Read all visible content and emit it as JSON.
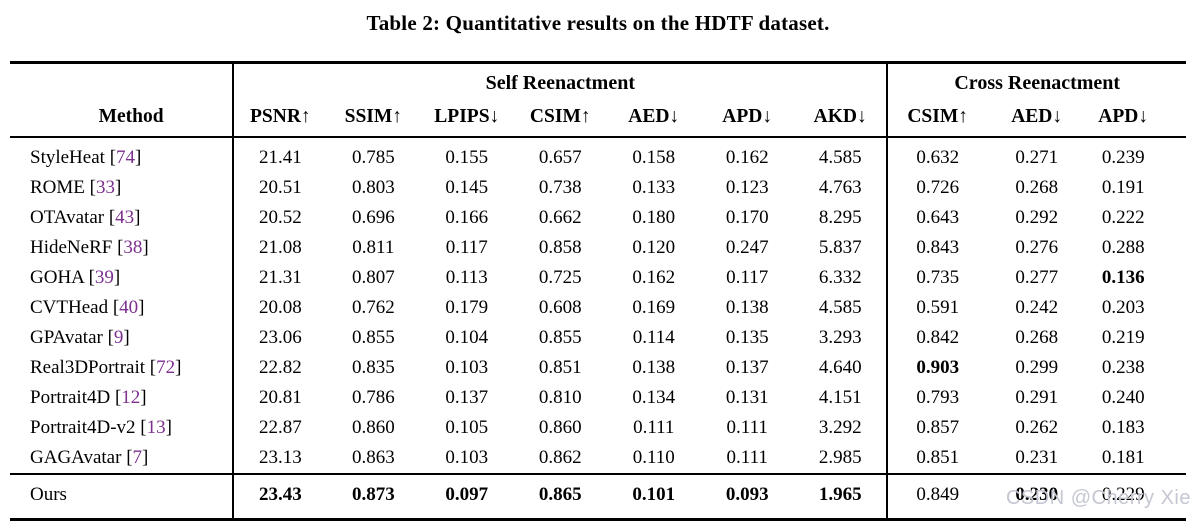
{
  "caption": "Table 2: Quantitative results on the HDTF dataset.",
  "watermark": "CSDN @Cherry Xie",
  "colors": {
    "text": "#000000",
    "citation_link": "#7b2f8e",
    "watermark": "#c5c7d2",
    "rule": "#000000",
    "background": "#ffffff"
  },
  "table": {
    "method_header": "Method",
    "groups": [
      {
        "label": "Self Reenactment",
        "span": 7
      },
      {
        "label": "Cross Reenactment",
        "span": 3
      }
    ],
    "columns": [
      "PSNR↑",
      "SSIM↑",
      "LPIPS↓",
      "CSIM↑",
      "AED↓",
      "APD↓",
      "AKD↓",
      "CSIM↑",
      "AED↓",
      "APD↓"
    ],
    "rows": [
      {
        "method": "StyleHeat",
        "cite": "74",
        "values": [
          "21.41",
          "0.785",
          "0.155",
          "0.657",
          "0.158",
          "0.162",
          "4.585",
          "0.632",
          "0.271",
          "0.239"
        ],
        "bold": []
      },
      {
        "method": "ROME",
        "cite": "33",
        "values": [
          "20.51",
          "0.803",
          "0.145",
          "0.738",
          "0.133",
          "0.123",
          "4.763",
          "0.726",
          "0.268",
          "0.191"
        ],
        "bold": []
      },
      {
        "method": "OTAvatar",
        "cite": "43",
        "values": [
          "20.52",
          "0.696",
          "0.166",
          "0.662",
          "0.180",
          "0.170",
          "8.295",
          "0.643",
          "0.292",
          "0.222"
        ],
        "bold": []
      },
      {
        "method": "HideNeRF",
        "cite": "38",
        "values": [
          "21.08",
          "0.811",
          "0.117",
          "0.858",
          "0.120",
          "0.247",
          "5.837",
          "0.843",
          "0.276",
          "0.288"
        ],
        "bold": []
      },
      {
        "method": "GOHA",
        "cite": "39",
        "values": [
          "21.31",
          "0.807",
          "0.113",
          "0.725",
          "0.162",
          "0.117",
          "6.332",
          "0.735",
          "0.277",
          "0.136"
        ],
        "bold": [
          9
        ]
      },
      {
        "method": "CVTHead",
        "cite": "40",
        "values": [
          "20.08",
          "0.762",
          "0.179",
          "0.608",
          "0.169",
          "0.138",
          "4.585",
          "0.591",
          "0.242",
          "0.203"
        ],
        "bold": []
      },
      {
        "method": "GPAvatar",
        "cite": "9",
        "values": [
          "23.06",
          "0.855",
          "0.104",
          "0.855",
          "0.114",
          "0.135",
          "3.293",
          "0.842",
          "0.268",
          "0.219"
        ],
        "bold": []
      },
      {
        "method": "Real3DPortrait",
        "cite": "72",
        "values": [
          "22.82",
          "0.835",
          "0.103",
          "0.851",
          "0.138",
          "0.137",
          "4.640",
          "0.903",
          "0.299",
          "0.238"
        ],
        "bold": [
          7
        ]
      },
      {
        "method": "Portrait4D",
        "cite": "12",
        "values": [
          "20.81",
          "0.786",
          "0.137",
          "0.810",
          "0.134",
          "0.131",
          "4.151",
          "0.793",
          "0.291",
          "0.240"
        ],
        "bold": []
      },
      {
        "method": "Portrait4D-v2",
        "cite": "13",
        "values": [
          "22.87",
          "0.860",
          "0.105",
          "0.860",
          "0.111",
          "0.111",
          "3.292",
          "0.857",
          "0.262",
          "0.183"
        ],
        "bold": []
      },
      {
        "method": "GAGAvatar",
        "cite": "7",
        "values": [
          "23.13",
          "0.863",
          "0.103",
          "0.862",
          "0.110",
          "0.111",
          "2.985",
          "0.851",
          "0.231",
          "0.181"
        ],
        "bold": []
      }
    ],
    "ours_row": {
      "method": "Ours",
      "values": [
        "23.43",
        "0.873",
        "0.097",
        "0.865",
        "0.101",
        "0.093",
        "1.965",
        "0.849",
        "0.230",
        "0.229"
      ],
      "bold": [
        0,
        1,
        2,
        3,
        4,
        5,
        6,
        8
      ]
    }
  }
}
